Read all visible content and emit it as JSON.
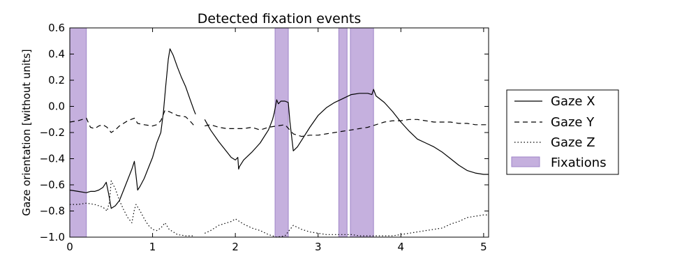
{
  "chart_data": {
    "type": "line",
    "title": "Detected fixation events",
    "xlabel": "",
    "ylabel": "Gaze orientation [without units]",
    "xlim": [
      0,
      5.06
    ],
    "ylim": [
      -1.0,
      0.6
    ],
    "x_ticks": [
      0,
      1,
      2,
      3,
      4,
      5
    ],
    "y_ticks": [
      0.6,
      0.4,
      0.2,
      0.0,
      -0.2,
      -0.4,
      -0.6,
      -0.8,
      -1.0
    ],
    "y_tick_labels": [
      "0.6",
      "0.4",
      "0.2",
      "0.0",
      "−0.2",
      "−0.4",
      "−0.6",
      "−0.8",
      "−1.0"
    ],
    "grid": false,
    "legend_position": "right-outside",
    "fixations": {
      "name": "Fixations",
      "color": "#c5b0de",
      "edge_color": "#9f85c8",
      "intervals": [
        [
          0.0,
          0.2
        ],
        [
          2.48,
          2.64
        ],
        [
          3.25,
          3.35
        ],
        [
          3.39,
          3.67
        ]
      ]
    },
    "series": [
      {
        "name": "Gaze X",
        "style": "solid",
        "segments": [
          [
            [
              0.0,
              -0.64
            ],
            [
              0.1,
              -0.65
            ],
            [
              0.2,
              -0.66
            ],
            [
              0.25,
              -0.65
            ],
            [
              0.3,
              -0.65
            ],
            [
              0.35,
              -0.64
            ],
            [
              0.4,
              -0.62
            ],
            [
              0.44,
              -0.58
            ],
            [
              0.47,
              -0.67
            ],
            [
              0.5,
              -0.78
            ],
            [
              0.55,
              -0.76
            ],
            [
              0.6,
              -0.72
            ],
            [
              0.65,
              -0.64
            ],
            [
              0.7,
              -0.56
            ],
            [
              0.75,
              -0.48
            ],
            [
              0.78,
              -0.42
            ],
            [
              0.8,
              -0.53
            ],
            [
              0.82,
              -0.64
            ],
            [
              0.85,
              -0.61
            ],
            [
              0.9,
              -0.55
            ],
            [
              0.95,
              -0.47
            ],
            [
              1.0,
              -0.39
            ],
            [
              1.05,
              -0.28
            ],
            [
              1.1,
              -0.2
            ],
            [
              1.13,
              -0.05
            ],
            [
              1.16,
              0.16
            ],
            [
              1.19,
              0.36
            ],
            [
              1.21,
              0.44
            ],
            [
              1.25,
              0.39
            ],
            [
              1.3,
              0.3
            ],
            [
              1.35,
              0.22
            ],
            [
              1.4,
              0.15
            ],
            [
              1.45,
              0.06
            ],
            [
              1.5,
              -0.03
            ],
            [
              1.52,
              -0.06
            ]
          ],
          [
            [
              1.63,
              -0.1
            ],
            [
              1.7,
              -0.18
            ],
            [
              1.8,
              -0.27
            ],
            [
              1.9,
              -0.35
            ],
            [
              1.95,
              -0.39
            ],
            [
              2.0,
              -0.41
            ],
            [
              2.03,
              -0.39
            ],
            [
              2.04,
              -0.48
            ],
            [
              2.05,
              -0.46
            ],
            [
              2.1,
              -0.41
            ],
            [
              2.2,
              -0.35
            ],
            [
              2.3,
              -0.28
            ],
            [
              2.4,
              -0.18
            ],
            [
              2.45,
              -0.1
            ],
            [
              2.47,
              -0.05
            ],
            [
              2.5,
              0.05
            ],
            [
              2.52,
              0.02
            ],
            [
              2.55,
              0.04
            ],
            [
              2.6,
              0.04
            ],
            [
              2.64,
              0.03
            ],
            [
              2.66,
              -0.12
            ],
            [
              2.7,
              -0.34
            ],
            [
              2.75,
              -0.31
            ],
            [
              2.8,
              -0.26
            ],
            [
              2.9,
              -0.16
            ],
            [
              3.0,
              -0.07
            ],
            [
              3.1,
              -0.01
            ],
            [
              3.2,
              0.03
            ],
            [
              3.3,
              0.06
            ],
            [
              3.4,
              0.09
            ],
            [
              3.5,
              0.1
            ],
            [
              3.6,
              0.1
            ],
            [
              3.65,
              0.09
            ],
            [
              3.67,
              0.13
            ],
            [
              3.7,
              0.08
            ],
            [
              3.8,
              0.03
            ],
            [
              3.9,
              -0.04
            ],
            [
              4.0,
              -0.12
            ],
            [
              4.1,
              -0.19
            ],
            [
              4.2,
              -0.25
            ],
            [
              4.3,
              -0.28
            ],
            [
              4.4,
              -0.31
            ],
            [
              4.5,
              -0.35
            ],
            [
              4.6,
              -0.4
            ],
            [
              4.7,
              -0.45
            ],
            [
              4.8,
              -0.49
            ],
            [
              4.9,
              -0.51
            ],
            [
              5.0,
              -0.52
            ],
            [
              5.06,
              -0.52
            ]
          ]
        ]
      },
      {
        "name": "Gaze Y",
        "style": "dashed",
        "segments": [
          [
            [
              0.0,
              -0.12
            ],
            [
              0.1,
              -0.11
            ],
            [
              0.2,
              -0.09
            ],
            [
              0.25,
              -0.16
            ],
            [
              0.3,
              -0.17
            ],
            [
              0.35,
              -0.15
            ],
            [
              0.4,
              -0.14
            ],
            [
              0.45,
              -0.16
            ],
            [
              0.5,
              -0.2
            ],
            [
              0.55,
              -0.18
            ],
            [
              0.6,
              -0.15
            ],
            [
              0.7,
              -0.11
            ],
            [
              0.78,
              -0.09
            ],
            [
              0.82,
              -0.13
            ],
            [
              0.9,
              -0.14
            ],
            [
              1.0,
              -0.15
            ],
            [
              1.05,
              -0.14
            ],
            [
              1.1,
              -0.11
            ],
            [
              1.15,
              -0.03
            ],
            [
              1.2,
              -0.04
            ],
            [
              1.3,
              -0.07
            ],
            [
              1.4,
              -0.08
            ],
            [
              1.45,
              -0.11
            ],
            [
              1.52,
              -0.16
            ]
          ],
          [
            [
              1.63,
              -0.15
            ],
            [
              1.7,
              -0.14
            ],
            [
              1.8,
              -0.16
            ],
            [
              1.9,
              -0.17
            ],
            [
              2.0,
              -0.17
            ],
            [
              2.1,
              -0.17
            ],
            [
              2.2,
              -0.16
            ],
            [
              2.3,
              -0.18
            ],
            [
              2.4,
              -0.16
            ],
            [
              2.5,
              -0.15
            ],
            [
              2.6,
              -0.14
            ],
            [
              2.7,
              -0.21
            ],
            [
              2.8,
              -0.23
            ],
            [
              2.9,
              -0.22
            ],
            [
              3.0,
              -0.22
            ],
            [
              3.1,
              -0.21
            ],
            [
              3.2,
              -0.2
            ],
            [
              3.3,
              -0.19
            ],
            [
              3.4,
              -0.18
            ],
            [
              3.5,
              -0.17
            ],
            [
              3.6,
              -0.16
            ],
            [
              3.7,
              -0.14
            ],
            [
              3.8,
              -0.12
            ],
            [
              3.9,
              -0.11
            ],
            [
              4.0,
              -0.11
            ],
            [
              4.1,
              -0.1
            ],
            [
              4.2,
              -0.1
            ],
            [
              4.3,
              -0.11
            ],
            [
              4.4,
              -0.12
            ],
            [
              4.5,
              -0.12
            ],
            [
              4.6,
              -0.12
            ],
            [
              4.7,
              -0.13
            ],
            [
              4.8,
              -0.13
            ],
            [
              4.9,
              -0.14
            ],
            [
              5.0,
              -0.14
            ],
            [
              5.06,
              -0.14
            ]
          ]
        ]
      },
      {
        "name": "Gaze Z",
        "style": "dotted",
        "segments": [
          [
            [
              0.0,
              -0.75
            ],
            [
              0.1,
              -0.75
            ],
            [
              0.2,
              -0.74
            ],
            [
              0.3,
              -0.75
            ],
            [
              0.4,
              -0.77
            ],
            [
              0.45,
              -0.8
            ],
            [
              0.48,
              -0.73
            ],
            [
              0.5,
              -0.57
            ],
            [
              0.55,
              -0.63
            ],
            [
              0.6,
              -0.72
            ],
            [
              0.65,
              -0.79
            ],
            [
              0.7,
              -0.85
            ],
            [
              0.75,
              -0.89
            ],
            [
              0.78,
              -0.79
            ],
            [
              0.8,
              -0.75
            ],
            [
              0.85,
              -0.8
            ],
            [
              0.9,
              -0.86
            ],
            [
              0.95,
              -0.91
            ],
            [
              1.0,
              -0.94
            ],
            [
              1.05,
              -0.95
            ],
            [
              1.1,
              -0.93
            ],
            [
              1.15,
              -0.89
            ],
            [
              1.2,
              -0.94
            ],
            [
              1.3,
              -0.98
            ],
            [
              1.4,
              -0.99
            ],
            [
              1.5,
              -0.99
            ]
          ],
          [
            [
              1.63,
              -0.97
            ],
            [
              1.7,
              -0.95
            ],
            [
              1.8,
              -0.91
            ],
            [
              1.9,
              -0.89
            ],
            [
              1.95,
              -0.88
            ],
            [
              2.0,
              -0.86
            ],
            [
              2.1,
              -0.9
            ],
            [
              2.2,
              -0.93
            ],
            [
              2.3,
              -0.95
            ],
            [
              2.4,
              -0.98
            ],
            [
              2.5,
              -1.0
            ],
            [
              2.6,
              -0.99
            ],
            [
              2.65,
              -0.95
            ],
            [
              2.7,
              -0.91
            ],
            [
              2.8,
              -0.94
            ],
            [
              2.9,
              -0.96
            ],
            [
              3.0,
              -0.97
            ],
            [
              3.1,
              -0.98
            ],
            [
              3.2,
              -0.98
            ],
            [
              3.3,
              -0.98
            ],
            [
              3.4,
              -0.98
            ],
            [
              3.5,
              -0.99
            ],
            [
              3.6,
              -0.99
            ],
            [
              3.7,
              -0.99
            ],
            [
              3.8,
              -0.99
            ],
            [
              3.9,
              -0.99
            ],
            [
              4.0,
              -0.98
            ],
            [
              4.1,
              -0.97
            ],
            [
              4.2,
              -0.96
            ],
            [
              4.3,
              -0.95
            ],
            [
              4.4,
              -0.94
            ],
            [
              4.5,
              -0.93
            ],
            [
              4.6,
              -0.9
            ],
            [
              4.7,
              -0.88
            ],
            [
              4.8,
              -0.85
            ],
            [
              4.9,
              -0.84
            ],
            [
              5.0,
              -0.83
            ],
            [
              5.06,
              -0.83
            ]
          ]
        ]
      }
    ]
  }
}
